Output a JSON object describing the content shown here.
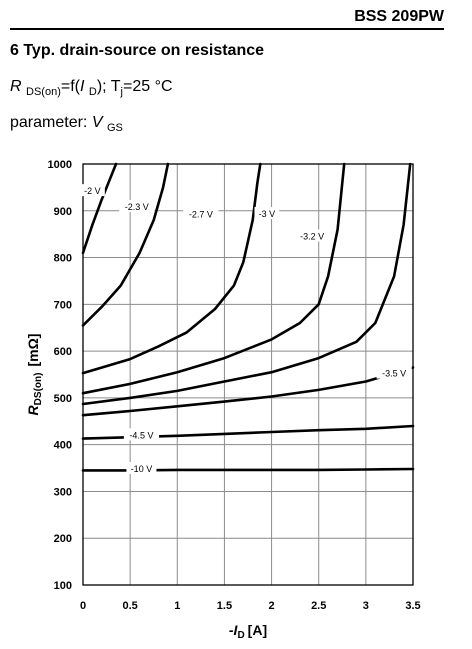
{
  "header": {
    "part": "BSS 209PW"
  },
  "section": {
    "title": "6 Typ. drain-source on resistance"
  },
  "condition": {
    "r": "R",
    "r_sub": "DS(on)",
    "eq": "=f(",
    "i": "I",
    "i_sub": "D",
    "rest": "); T",
    "tj_sub": "j",
    "temp": "=25 °C"
  },
  "parameter": {
    "label": "parameter: ",
    "v": "V",
    "v_sub": "GS"
  },
  "chart_data": {
    "type": "line",
    "xlabel_prefix": "-I",
    "xlabel_sub": "D",
    "xlabel_unit": "[A]",
    "ylabel_prefix": "R",
    "ylabel_sub": "DS(on)",
    "ylabel_unit": "[mΩ]",
    "xlim": [
      0,
      3.5
    ],
    "ylim": [
      100,
      1000
    ],
    "x_ticks": [
      0,
      0.5,
      1,
      1.5,
      2,
      2.5,
      3,
      3.5
    ],
    "x_tick_labels": [
      "0",
      "0.5",
      "1",
      "1.5",
      "2",
      "2.5",
      "3",
      "3.5"
    ],
    "y_ticks": [
      100,
      200,
      300,
      400,
      500,
      600,
      700,
      800,
      900,
      1000
    ],
    "y_tick_labels": [
      "100",
      "200",
      "300",
      "400",
      "500",
      "600",
      "700",
      "800",
      "900",
      "1000"
    ],
    "grid": true,
    "series": [
      {
        "name": "-2 V",
        "points": [
          [
            0,
            810
          ],
          [
            0.1,
            870
          ],
          [
            0.2,
            925
          ],
          [
            0.3,
            975
          ],
          [
            0.35,
            1000
          ]
        ]
      },
      {
        "name": "-2.3 V",
        "points": [
          [
            0,
            655
          ],
          [
            0.2,
            695
          ],
          [
            0.4,
            740
          ],
          [
            0.6,
            810
          ],
          [
            0.75,
            880
          ],
          [
            0.85,
            950
          ],
          [
            0.9,
            1000
          ]
        ]
      },
      {
        "name": "-2.7 V",
        "points": [
          [
            0,
            553
          ],
          [
            0.5,
            583
          ],
          [
            0.8,
            610
          ],
          [
            1.1,
            640
          ],
          [
            1.4,
            690
          ],
          [
            1.6,
            740
          ],
          [
            1.7,
            790
          ],
          [
            1.8,
            880
          ],
          [
            1.85,
            960
          ],
          [
            1.88,
            1000
          ]
        ]
      },
      {
        "name": "-3 V",
        "points": [
          [
            0,
            510
          ],
          [
            0.5,
            530
          ],
          [
            1,
            555
          ],
          [
            1.5,
            585
          ],
          [
            2,
            625
          ],
          [
            2.3,
            660
          ],
          [
            2.5,
            700
          ],
          [
            2.6,
            760
          ],
          [
            2.7,
            860
          ],
          [
            2.75,
            960
          ],
          [
            2.77,
            1000
          ]
        ]
      },
      {
        "name": "-3.2 V",
        "points": [
          [
            0,
            487
          ],
          [
            0.5,
            500
          ],
          [
            1,
            515
          ],
          [
            1.5,
            535
          ],
          [
            2,
            555
          ],
          [
            2.5,
            585
          ],
          [
            2.9,
            620
          ],
          [
            3.1,
            660
          ],
          [
            3.3,
            760
          ],
          [
            3.4,
            870
          ],
          [
            3.47,
            1000
          ]
        ]
      },
      {
        "name": "-3.5 V",
        "points": [
          [
            0,
            463
          ],
          [
            0.5,
            472
          ],
          [
            1,
            482
          ],
          [
            1.5,
            492
          ],
          [
            2,
            503
          ],
          [
            2.5,
            517
          ],
          [
            3,
            535
          ],
          [
            3.5,
            565
          ]
        ]
      },
      {
        "name": "-4.5 V",
        "points": [
          [
            0,
            413
          ],
          [
            0.5,
            416
          ],
          [
            1,
            419
          ],
          [
            1.5,
            423
          ],
          [
            2,
            427
          ],
          [
            2.5,
            431
          ],
          [
            3,
            434
          ],
          [
            3.5,
            440
          ]
        ]
      },
      {
        "name": "-10 V",
        "points": [
          [
            0,
            345
          ],
          [
            0.5,
            345
          ],
          [
            1,
            346
          ],
          [
            1.5,
            346
          ],
          [
            2,
            346
          ],
          [
            2.5,
            346
          ],
          [
            3,
            347
          ],
          [
            3.5,
            348
          ]
        ]
      }
    ],
    "curve_labels": [
      {
        "text": "-2 V",
        "x": 0.1,
        "y": 942
      },
      {
        "text": "-2.3 V",
        "x": 0.57,
        "y": 908
      },
      {
        "text": "-2.7 V",
        "x": 1.25,
        "y": 892
      },
      {
        "text": "-3 V",
        "x": 1.95,
        "y": 893
      },
      {
        "text": "-3.2 V",
        "x": 2.43,
        "y": 845
      },
      {
        "text": "-3.5 V",
        "x": 3.3,
        "y": 552
      },
      {
        "text": "-4.5 V",
        "x": 0.62,
        "y": 420
      },
      {
        "text": "-10 V",
        "x": 0.62,
        "y": 348
      }
    ]
  }
}
